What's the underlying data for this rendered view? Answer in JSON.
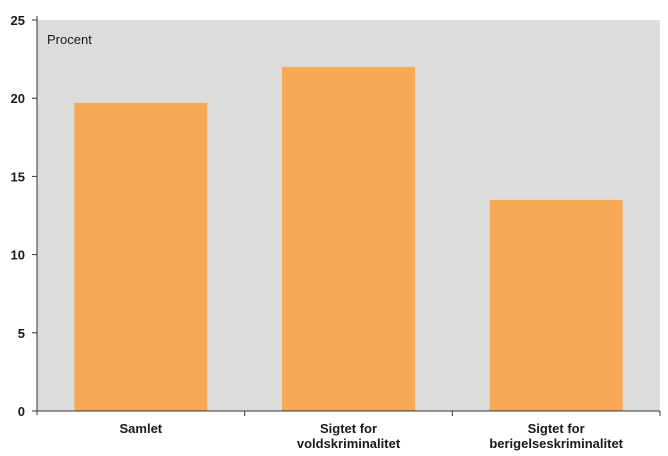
{
  "chart_data": {
    "type": "bar",
    "unit_label": "Procent",
    "categories": [
      [
        "Samlet"
      ],
      [
        "Sigtet for",
        "voldskriminalitet"
      ],
      [
        "Sigtet for",
        "berigelseskriminalitet"
      ]
    ],
    "values": [
      19.7,
      22.0,
      13.5
    ],
    "ylim": [
      0,
      25
    ],
    "yticks": [
      0,
      5,
      10,
      15,
      20,
      25
    ],
    "grid": false,
    "colors": {
      "plot_background": "#dcdcdc",
      "bar": "#f7a957",
      "axis": "#333333"
    }
  }
}
